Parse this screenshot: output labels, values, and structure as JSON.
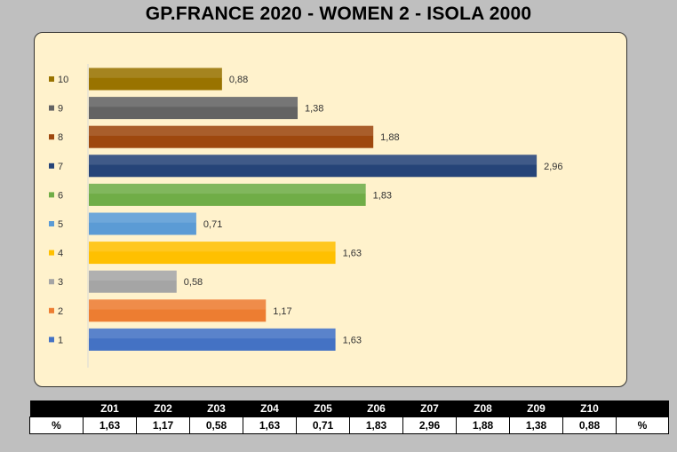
{
  "title": "GP.FRANCE 2020 - WOMEN 2 - ISOLA 2000",
  "chart_data": {
    "type": "bar",
    "orientation": "horizontal",
    "title": "GP.FRANCE 2020 - WOMEN 2 - ISOLA 2000",
    "categories": [
      "1",
      "2",
      "3",
      "4",
      "5",
      "6",
      "7",
      "8",
      "9",
      "10"
    ],
    "values": [
      1.63,
      1.17,
      0.58,
      1.63,
      0.71,
      1.83,
      2.96,
      1.88,
      1.38,
      0.88
    ],
    "data_labels": [
      "1,63",
      "1,17",
      "0,58",
      "1,63",
      "0,71",
      "1,83",
      "2,96",
      "1,88",
      "1,38",
      "0,88"
    ],
    "colors": [
      "#4472c4",
      "#ed7d31",
      "#a5a5a5",
      "#ffc000",
      "#5b9bd5",
      "#70ad47",
      "#264478",
      "#9e480e",
      "#636363",
      "#997300"
    ],
    "xlim": [
      0,
      3.6
    ],
    "grid": false,
    "legend": "left"
  },
  "table": {
    "headers": [
      "",
      "Z01",
      "Z02",
      "Z03",
      "Z04",
      "Z05",
      "Z06",
      "Z07",
      "Z08",
      "Z09",
      "Z10",
      ""
    ],
    "row": [
      "%",
      "1,63",
      "1,17",
      "0,58",
      "1,63",
      "0,71",
      "1,83",
      "2,96",
      "1,88",
      "1,38",
      "0,88",
      "%"
    ]
  }
}
